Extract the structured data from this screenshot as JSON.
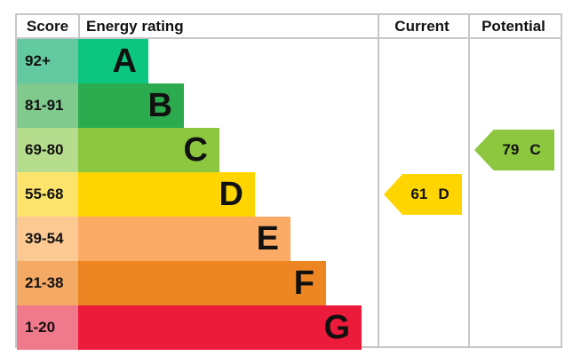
{
  "header": {
    "score": "Score",
    "rating": "Energy rating",
    "current": "Current",
    "potential": "Potential"
  },
  "chart_data": {
    "type": "bar",
    "subtype": "epc-energy-rating",
    "orientation": "horizontal",
    "title": "",
    "column_headers": [
      "Score",
      "Energy rating",
      "Current",
      "Potential"
    ],
    "bands": [
      {
        "letter": "A",
        "score": "92+",
        "color": "#0cc57f",
        "score_bg": "#63c9a0"
      },
      {
        "letter": "B",
        "score": "81-91",
        "color": "#2caa4e",
        "score_bg": "#80ca8e"
      },
      {
        "letter": "C",
        "score": "69-80",
        "color": "#8dc63f",
        "score_bg": "#b6dc8d"
      },
      {
        "letter": "D",
        "score": "55-68",
        "color": "#ffd500",
        "score_bg": "#fce46c"
      },
      {
        "letter": "E",
        "score": "39-54",
        "color": "#fbab66",
        "score_bg": "#fcc992"
      },
      {
        "letter": "F",
        "score": "21-38",
        "color": "#ee8523",
        "score_bg": "#f4aa65"
      },
      {
        "letter": "G",
        "score": "1-20",
        "color": "#ec1a3b",
        "score_bg": "#f1798c"
      }
    ],
    "current": {
      "value": "61",
      "letter": "D",
      "color": "#ffd500"
    },
    "potential": {
      "value": "79",
      "letter": "C",
      "color": "#8dc63f"
    },
    "border_color": "#c6c6c6",
    "legend": "none",
    "grid": "off"
  }
}
